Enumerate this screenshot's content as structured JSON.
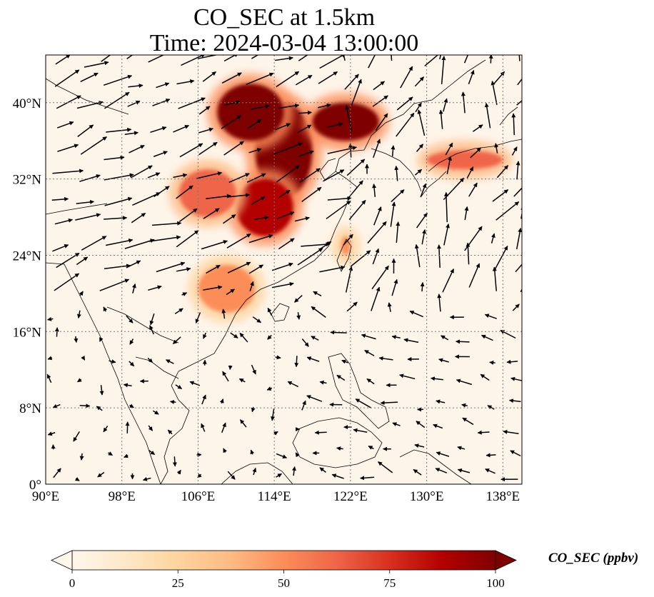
{
  "title": {
    "line1": "CO_SEC at 1.5km",
    "line2": "Time: 2024-03-04 13:00:00"
  },
  "map_data": {
    "type": "map",
    "projection": "PlateCarree",
    "extent": {
      "lon": [
        90,
        140
      ],
      "lat": [
        0,
        45
      ]
    },
    "gridlines": true,
    "lon_ticks": [
      {
        "value": 90,
        "label": "90°E"
      },
      {
        "value": 98,
        "label": "98°E"
      },
      {
        "value": 106,
        "label": "106°E"
      },
      {
        "value": 114,
        "label": "114°E"
      },
      {
        "value": 122,
        "label": "122°E"
      },
      {
        "value": 130,
        "label": "130°E"
      },
      {
        "value": 138,
        "label": "138°E"
      }
    ],
    "lat_ticks": [
      {
        "value": 0,
        "label": "0°"
      },
      {
        "value": 8,
        "label": "8°N"
      },
      {
        "value": 16,
        "label": "16°N"
      },
      {
        "value": 24,
        "label": "24°N"
      },
      {
        "value": 32,
        "label": "32°N"
      },
      {
        "value": 40,
        "label": "40°N"
      }
    ],
    "colorbar": {
      "label": "CO_SEC (ppbv)",
      "colormap": "OrRd",
      "min": 0,
      "max": 100,
      "extend": "both",
      "ticks": [
        {
          "value": 0,
          "label": "0"
        },
        {
          "value": 25,
          "label": "25"
        },
        {
          "value": 50,
          "label": "50"
        },
        {
          "value": 75,
          "label": "75"
        },
        {
          "value": 100,
          "label": "100"
        }
      ],
      "colors": [
        "#fff7ec",
        "#fee8c8",
        "#fdd49e",
        "#fdbb84",
        "#fc8d59",
        "#ef6548",
        "#d7301f",
        "#b30000",
        "#7f0000"
      ]
    },
    "plumes": [
      {
        "lon": [
          112,
          118
        ],
        "lat": [
          30,
          40
        ],
        "value": 100
      },
      {
        "lon": [
          108,
          115
        ],
        "lat": [
          36,
          42
        ],
        "value": 100
      },
      {
        "lon": [
          118,
          125
        ],
        "lat": [
          36,
          40
        ],
        "value": 95
      },
      {
        "lon": [
          110,
          116
        ],
        "lat": [
          26,
          32
        ],
        "value": 85
      },
      {
        "lon": [
          104,
          110
        ],
        "lat": [
          28,
          33
        ],
        "value": 60
      },
      {
        "lon": [
          106,
          112
        ],
        "lat": [
          18,
          23
        ],
        "value": 50
      },
      {
        "lon": [
          130,
          138
        ],
        "lat": [
          33,
          35
        ],
        "value": 60
      },
      {
        "lon": [
          121,
          122
        ],
        "lat": [
          24,
          26
        ],
        "value": 55
      }
    ]
  }
}
